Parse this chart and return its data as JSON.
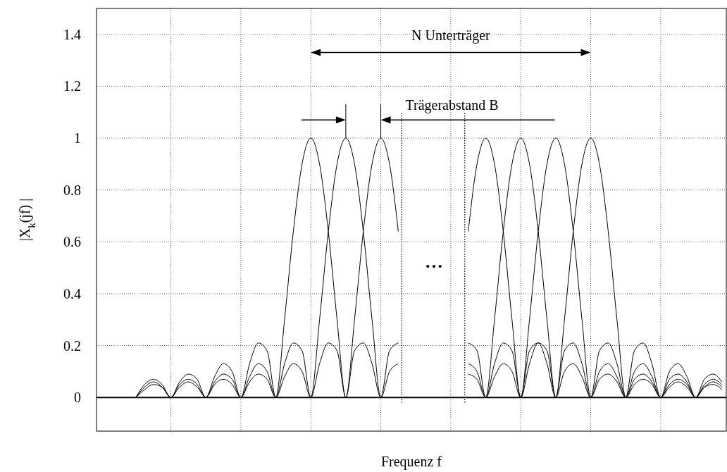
{
  "chart_data": {
    "type": "line",
    "xlabel": "Frequenz f",
    "ylabel": "|X$_{k}$(jf) |",
    "categories": [
      null,
      null,
      null,
      null,
      null,
      null,
      null,
      null,
      null,
      null,
      null,
      null,
      null,
      null,
      null,
      null,
      null,
      null,
      null,
      null,
      null,
      null,
      null,
      null,
      null,
      null,
      null,
      null,
      null,
      null,
      null,
      null,
      null,
      null,
      null,
      null,
      null,
      null,
      null,
      null,
      null,
      null,
      null,
      null,
      null,
      null,
      null,
      null,
      null,
      null,
      null,
      null,
      null,
      null,
      null,
      null,
      null,
      null,
      null,
      null,
      null,
      null,
      null,
      null,
      null,
      null,
      null,
      null,
      null,
      null,
      null,
      null
    ],
    "series": [
      {
        "color": "#000000",
        "values": [
          null,
          null,
          null,
          null,
          0,
          0.05,
          0.07,
          0.05,
          0,
          0.06,
          0.09,
          0.07,
          0,
          0.08,
          0.13,
          0.1,
          0,
          0.13,
          0.21,
          0.18,
          0,
          0.3,
          0.64,
          0.9,
          1,
          0.9,
          0.64,
          0.3,
          0,
          0.18,
          0.21,
          0.13,
          0,
          0.1,
          0.13,
          null,
          null,
          null,
          null,
          null,
          null,
          null,
          null,
          null,
          null,
          null,
          null,
          null,
          null,
          null,
          null,
          null,
          null,
          null,
          null,
          null,
          null,
          null,
          null,
          null,
          null,
          null,
          null,
          null,
          null,
          null,
          null,
          null,
          null,
          null,
          null,
          null
        ]
      },
      {
        "color": "#000000",
        "values": [
          null,
          null,
          null,
          null,
          0,
          0.04,
          0.06,
          0.04,
          0,
          0.05,
          0.07,
          0.05,
          0,
          0.06,
          0.09,
          0.07,
          0,
          0.08,
          0.13,
          0.1,
          0,
          0.13,
          0.21,
          0.18,
          0,
          0.3,
          0.64,
          0.9,
          1,
          0.9,
          0.64,
          0.3,
          0,
          0.18,
          0.21,
          null,
          null,
          null,
          null,
          null,
          null,
          null,
          null,
          null,
          null,
          null,
          null,
          null,
          null,
          null,
          null,
          null,
          null,
          null,
          null,
          null,
          null,
          null,
          null,
          null,
          null,
          null,
          null,
          null,
          null,
          null,
          null,
          null,
          null,
          null,
          null,
          null
        ]
      },
      {
        "color": "#000000",
        "values": [
          null,
          null,
          null,
          null,
          0,
          0.03,
          0.05,
          0.04,
          0,
          0.04,
          0.06,
          0.04,
          0,
          0.05,
          0.07,
          0.05,
          0,
          0.06,
          0.09,
          0.07,
          0,
          0.08,
          0.13,
          0.1,
          0,
          0.13,
          0.21,
          0.18,
          0,
          0.3,
          0.64,
          0.9,
          1,
          0.9,
          0.64,
          null,
          null,
          null,
          null,
          null,
          null,
          null,
          null,
          null,
          null,
          null,
          null,
          null,
          null,
          null,
          null,
          null,
          null,
          null,
          null,
          null,
          null,
          null,
          null,
          null,
          null,
          null,
          null,
          null,
          null,
          null,
          null,
          null,
          null,
          null,
          null,
          null
        ]
      },
      {
        "color": "#000000",
        "values": [
          null,
          null,
          null,
          null,
          null,
          null,
          null,
          null,
          null,
          null,
          null,
          null,
          null,
          null,
          null,
          null,
          null,
          null,
          null,
          null,
          null,
          null,
          null,
          null,
          null,
          null,
          null,
          null,
          null,
          null,
          null,
          null,
          null,
          null,
          null,
          null,
          null,
          null,
          null,
          null,
          null,
          null,
          0.64,
          0.9,
          1,
          0.9,
          0.64,
          0.3,
          0,
          0.18,
          0.21,
          0.13,
          0,
          0.1,
          0.13,
          0.08,
          0,
          0.07,
          0.09,
          0.06,
          0,
          0.05,
          0.07,
          0.05,
          0,
          0.04,
          0.06,
          0.04,
          0,
          0.04,
          0.05,
          0.03
        ]
      },
      {
        "color": "#000000",
        "values": [
          null,
          null,
          null,
          null,
          null,
          null,
          null,
          null,
          null,
          null,
          null,
          null,
          null,
          null,
          null,
          null,
          null,
          null,
          null,
          null,
          null,
          null,
          null,
          null,
          null,
          null,
          null,
          null,
          null,
          null,
          null,
          null,
          null,
          null,
          null,
          null,
          null,
          null,
          null,
          null,
          null,
          null,
          0.21,
          0.18,
          0,
          0.3,
          0.64,
          0.9,
          1,
          0.9,
          0.64,
          0.3,
          0,
          0.18,
          0.21,
          0.13,
          0,
          0.1,
          0.13,
          0.08,
          0,
          0.07,
          0.09,
          0.06,
          0,
          0.05,
          0.07,
          0.05,
          0,
          0.04,
          0.06,
          0.04
        ]
      },
      {
        "color": "#000000",
        "values": [
          null,
          null,
          null,
          null,
          null,
          null,
          null,
          null,
          null,
          null,
          null,
          null,
          null,
          null,
          null,
          null,
          null,
          null,
          null,
          null,
          null,
          null,
          null,
          null,
          null,
          null,
          null,
          null,
          null,
          null,
          null,
          null,
          null,
          null,
          null,
          null,
          null,
          null,
          null,
          null,
          null,
          null,
          0.13,
          0.1,
          0,
          0.13,
          0.21,
          0.18,
          0,
          0.3,
          0.64,
          0.9,
          1,
          0.9,
          0.64,
          0.3,
          0,
          0.18,
          0.21,
          0.13,
          0,
          0.1,
          0.13,
          0.08,
          0,
          0.07,
          0.09,
          0.06,
          0,
          0.05,
          0.07,
          0.05
        ]
      },
      {
        "color": "#000000",
        "values": [
          null,
          null,
          null,
          null,
          null,
          null,
          null,
          null,
          null,
          null,
          null,
          null,
          null,
          null,
          null,
          null,
          null,
          null,
          null,
          null,
          null,
          null,
          null,
          null,
          null,
          null,
          null,
          null,
          null,
          null,
          null,
          null,
          null,
          null,
          null,
          null,
          null,
          null,
          null,
          null,
          null,
          null,
          0.09,
          0.07,
          0,
          0.08,
          0.13,
          0.1,
          0,
          0.13,
          0.21,
          0.18,
          0,
          0.3,
          0.64,
          0.9,
          1,
          0.9,
          0.64,
          0.3,
          0,
          0.18,
          0.21,
          0.13,
          0,
          0.1,
          0.13,
          0.08,
          0,
          0.07,
          0.09,
          0.06
        ]
      }
    ],
    "ylim": [
      -0.13,
      1.5
    ],
    "yticks": [
      0,
      0.2,
      0.4,
      0.6,
      0.8,
      1,
      1.2,
      1.4
    ],
    "grid": true,
    "tick_labels": "y",
    "ref_lines": [
      {
        "axis": "y",
        "value": 0,
        "color": "#000000"
      }
    ],
    "annotations": [
      "N Unterträger",
      "Trägerabstand B",
      "…"
    ]
  }
}
